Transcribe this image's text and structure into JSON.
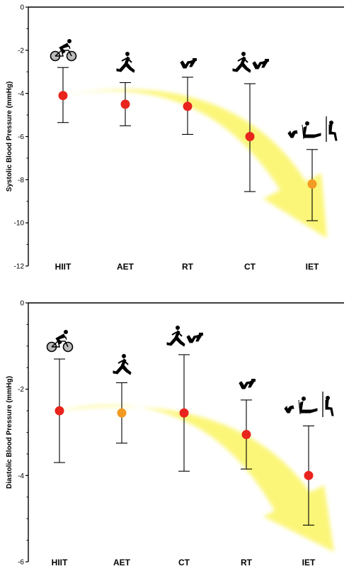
{
  "chart_data": [
    {
      "type": "scatter",
      "ylabel": "Systolic Blood Pressure (mmHg)",
      "xlabel": "",
      "ylim": [
        -12,
        0
      ],
      "yticks": [
        0,
        -2,
        -4,
        -6,
        -8,
        -10,
        -12
      ],
      "categories": [
        "HIIT",
        "AET",
        "RT",
        "CT",
        "IET"
      ],
      "values": [
        -4.1,
        -4.5,
        -4.6,
        -6.0,
        -8.2
      ],
      "ci_lower": [
        -5.35,
        -5.5,
        -5.9,
        -8.55,
        -9.9
      ],
      "ci_upper": [
        -2.8,
        -3.5,
        -3.25,
        -3.55,
        -6.6
      ],
      "point_colors": [
        "#e8241c",
        "#e8241c",
        "#e8241c",
        "#e8241c",
        "#f39a22"
      ],
      "icons": [
        "cycling-icon",
        "running-icon",
        "resistance-icon",
        "combined-icon",
        "isometric-icon"
      ],
      "trend_arrow_color": "#fbf56b",
      "grid": false
    },
    {
      "type": "scatter",
      "ylabel": "Diastolic Blood Pressure (mmHg)",
      "xlabel": "",
      "ylim": [
        -6,
        0
      ],
      "yticks": [
        0,
        -2,
        -4,
        -6
      ],
      "categories": [
        "HIIT",
        "AET",
        "CT",
        "RT",
        "IET"
      ],
      "values": [
        -2.5,
        -2.55,
        -2.55,
        -3.05,
        -4.0
      ],
      "ci_lower": [
        -3.7,
        -3.25,
        -3.9,
        -3.85,
        -5.15
      ],
      "ci_upper": [
        -1.3,
        -1.85,
        -1.2,
        -2.25,
        -2.85
      ],
      "point_colors": [
        "#e8241c",
        "#f39a22",
        "#e8241c",
        "#e8241c",
        "#e8241c"
      ],
      "icons": [
        "cycling-icon",
        "running-icon",
        "combined-icon",
        "resistance-icon",
        "isometric-icon"
      ],
      "trend_arrow_color": "#fbf56b",
      "grid": false
    }
  ]
}
